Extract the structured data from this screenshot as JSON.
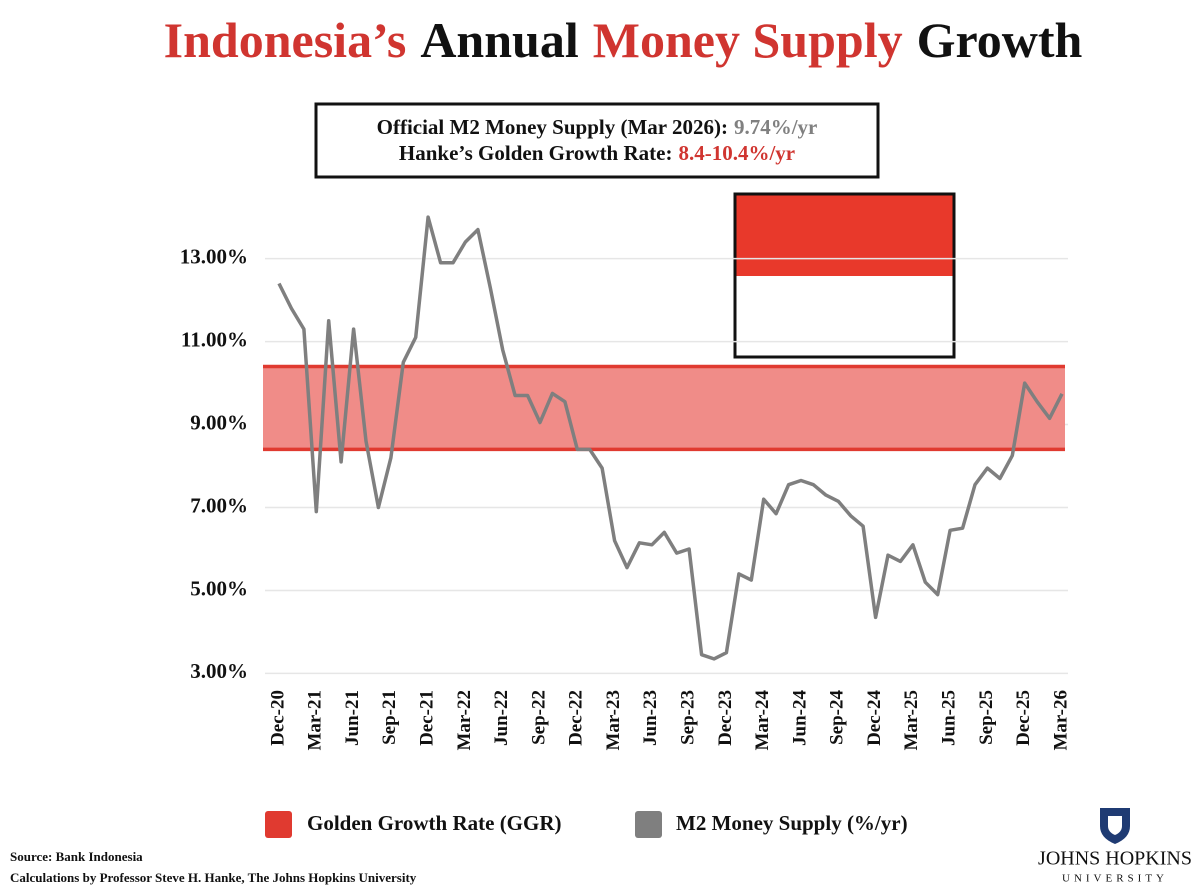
{
  "chart_data": {
    "type": "line",
    "title_parts": [
      {
        "text": "Indonesia’s",
        "color": "#d03530"
      },
      {
        "text": "Annual",
        "color": "#111111"
      },
      {
        "text": "Money Supply",
        "color": "#d03530"
      },
      {
        "text": "Growth",
        "color": "#111111"
      }
    ],
    "annotations": [
      {
        "text": "Official M2 Money Supply (Mar 2026):",
        "value_text": "9.74%/yr",
        "value_color": "#808080"
      },
      {
        "text": "Hanke’s Golden Growth Rate:",
        "value_text": "8.4-10.4%/yr",
        "value_color": "#d03530"
      }
    ],
    "categories": [
      "Dec-20",
      null,
      null,
      "Mar-21",
      null,
      null,
      "Jun-21",
      null,
      null,
      "Sep-21",
      null,
      null,
      "Dec-21",
      null,
      null,
      "Mar-22",
      null,
      null,
      "Jun-22",
      null,
      null,
      "Sep-22",
      null,
      null,
      "Dec-22",
      null,
      null,
      "Mar-23",
      null,
      null,
      "Jun-23",
      null,
      null,
      "Sep-23",
      null,
      null,
      "Dec-23",
      null,
      null,
      "Mar-24",
      null,
      null,
      "Jun-24",
      null,
      null,
      "Sep-24",
      null,
      null,
      "Dec-24",
      null,
      null,
      "Mar-25",
      null,
      null,
      "Jun-25",
      null,
      null,
      "Sep-25",
      null,
      null,
      "Dec-25",
      null,
      null,
      "Mar-26"
    ],
    "series": [
      {
        "name": "M2 Money Supply (%/yr)",
        "color": "#7f7f7f",
        "values": [
          12.4,
          11.8,
          11.3,
          6.9,
          11.5,
          8.1,
          11.3,
          8.6,
          7.0,
          8.2,
          10.5,
          11.1,
          14.0,
          12.9,
          12.9,
          13.4,
          13.7,
          12.3,
          10.8,
          9.7,
          9.7,
          9.05,
          9.75,
          9.55,
          8.4,
          8.4,
          7.95,
          6.2,
          5.55,
          6.15,
          6.1,
          6.4,
          5.9,
          6.0,
          3.45,
          3.35,
          3.5,
          5.4,
          5.25,
          7.2,
          6.85,
          7.55,
          7.65,
          7.55,
          7.3,
          7.15,
          6.8,
          6.55,
          4.35,
          5.85,
          5.7,
          6.1,
          5.2,
          4.9,
          6.45,
          6.5,
          7.55,
          7.95,
          7.7,
          8.25,
          10.0,
          9.55,
          9.15,
          9.74
        ]
      }
    ],
    "band": {
      "name": "Golden Growth Rate (GGR)",
      "range": [
        8.4,
        10.4
      ],
      "color": "#f08c88",
      "edge_color": "#e03a30"
    },
    "ylim": [
      2.6,
      14.1
    ],
    "yticks": [
      {
        "value": 3,
        "label": "3.00%"
      },
      {
        "value": 5,
        "label": "5.00%"
      },
      {
        "value": 7,
        "label": "7.00%"
      },
      {
        "value": 9,
        "label": "9.00%"
      },
      {
        "value": 11,
        "label": "11.00%"
      },
      {
        "value": 13,
        "label": "13.00%"
      }
    ],
    "grid": true,
    "source": [
      "Source: Bank Indonesia",
      "Calculations by Professor Steve H. Hanke, The Johns Hopkins University"
    ],
    "logo": [
      "JOHNS HOPKINS",
      "UNIVERSITY"
    ]
  }
}
